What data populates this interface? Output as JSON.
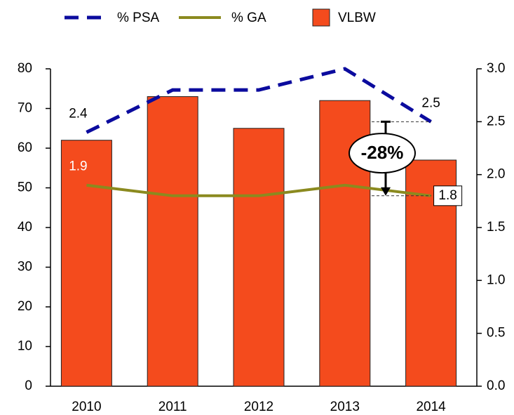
{
  "chart_data": {
    "type": "bar-line",
    "categories": [
      "2010",
      "2011",
      "2012",
      "2013",
      "2014"
    ],
    "series": [
      {
        "name": "% PSA",
        "type": "line",
        "style": "dashed",
        "color": "#0b0b9e",
        "axis": "y2",
        "values": [
          2.4,
          2.8,
          2.8,
          3.0,
          2.5
        ],
        "value_labels": [
          "2.4",
          null,
          null,
          null,
          "2.5"
        ]
      },
      {
        "name": "% GA",
        "type": "line",
        "style": "solid",
        "color": "#8b8a1f",
        "axis": "y2",
        "values": [
          1.9,
          1.8,
          1.8,
          1.9,
          1.8
        ],
        "value_labels": [
          "1.9",
          null,
          null,
          null,
          "1.8"
        ]
      },
      {
        "name": "VLBW",
        "type": "bar",
        "color": "#f44b1d",
        "axis": "y",
        "values": [
          62,
          73,
          65,
          72,
          57
        ]
      }
    ],
    "ylim": [
      0,
      80
    ],
    "yticks": [
      0,
      10,
      20,
      30,
      40,
      50,
      60,
      70,
      80
    ],
    "y2lim": [
      0,
      3
    ],
    "y2ticks": [
      {
        "value": 0,
        "label": "0.0"
      },
      0.5,
      {
        "value": 1,
        "label": "1.0"
      },
      1.5,
      {
        "value": 2,
        "label": "2.0"
      },
      2.5,
      {
        "value": 3,
        "label": "3.0"
      }
    ],
    "annotations": [
      {
        "text": "-28%"
      }
    ],
    "legend": "top"
  }
}
